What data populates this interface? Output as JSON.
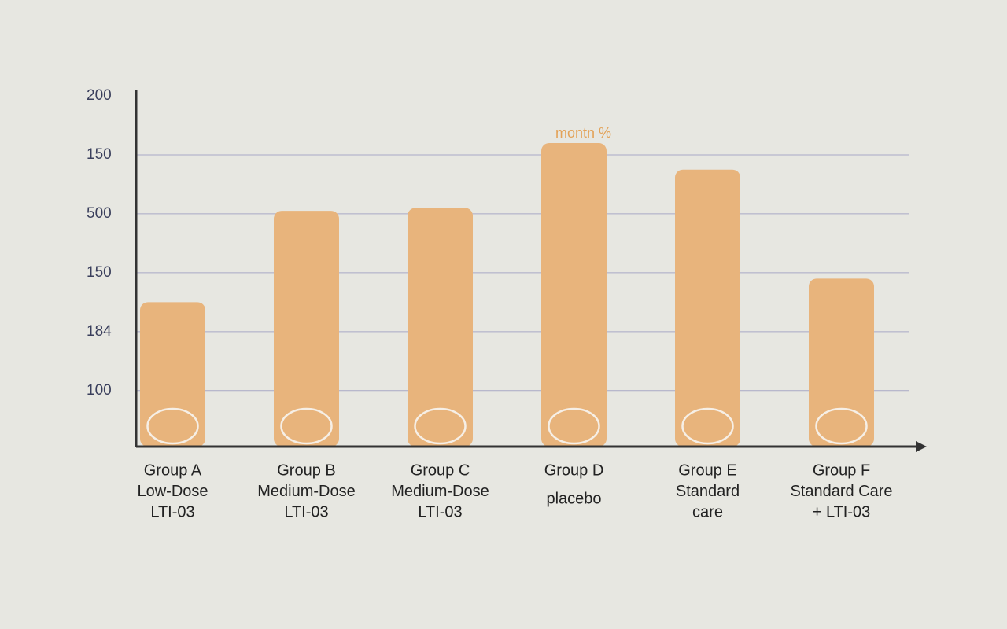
{
  "chart_data": {
    "type": "bar",
    "annotation": "montn %",
    "categories": [
      [
        "Group A",
        "Low-Dose",
        "LTI-03"
      ],
      [
        "Group B",
        "Medium-Dose",
        "LTI-03"
      ],
      [
        "Group C",
        "Medium-Dose",
        "LTI-03"
      ],
      [
        "Group D",
        "placebo"
      ],
      [
        "Group E",
        "Standard",
        "care"
      ],
      [
        "Group F",
        "Standard Care",
        "+ LTI-03"
      ]
    ],
    "values": [
      130,
      161,
      162,
      184,
      175,
      138
    ],
    "color": "#e8b47c",
    "ylim": [
      81,
      200
    ],
    "yticks": [
      100,
      {
        "value": 120,
        "label": "184"
      },
      {
        "value": 140,
        "label": "150"
      },
      {
        "value": 160,
        "label": "500"
      },
      {
        "value": 180,
        "label": "150"
      },
      200
    ],
    "grid": true
  }
}
